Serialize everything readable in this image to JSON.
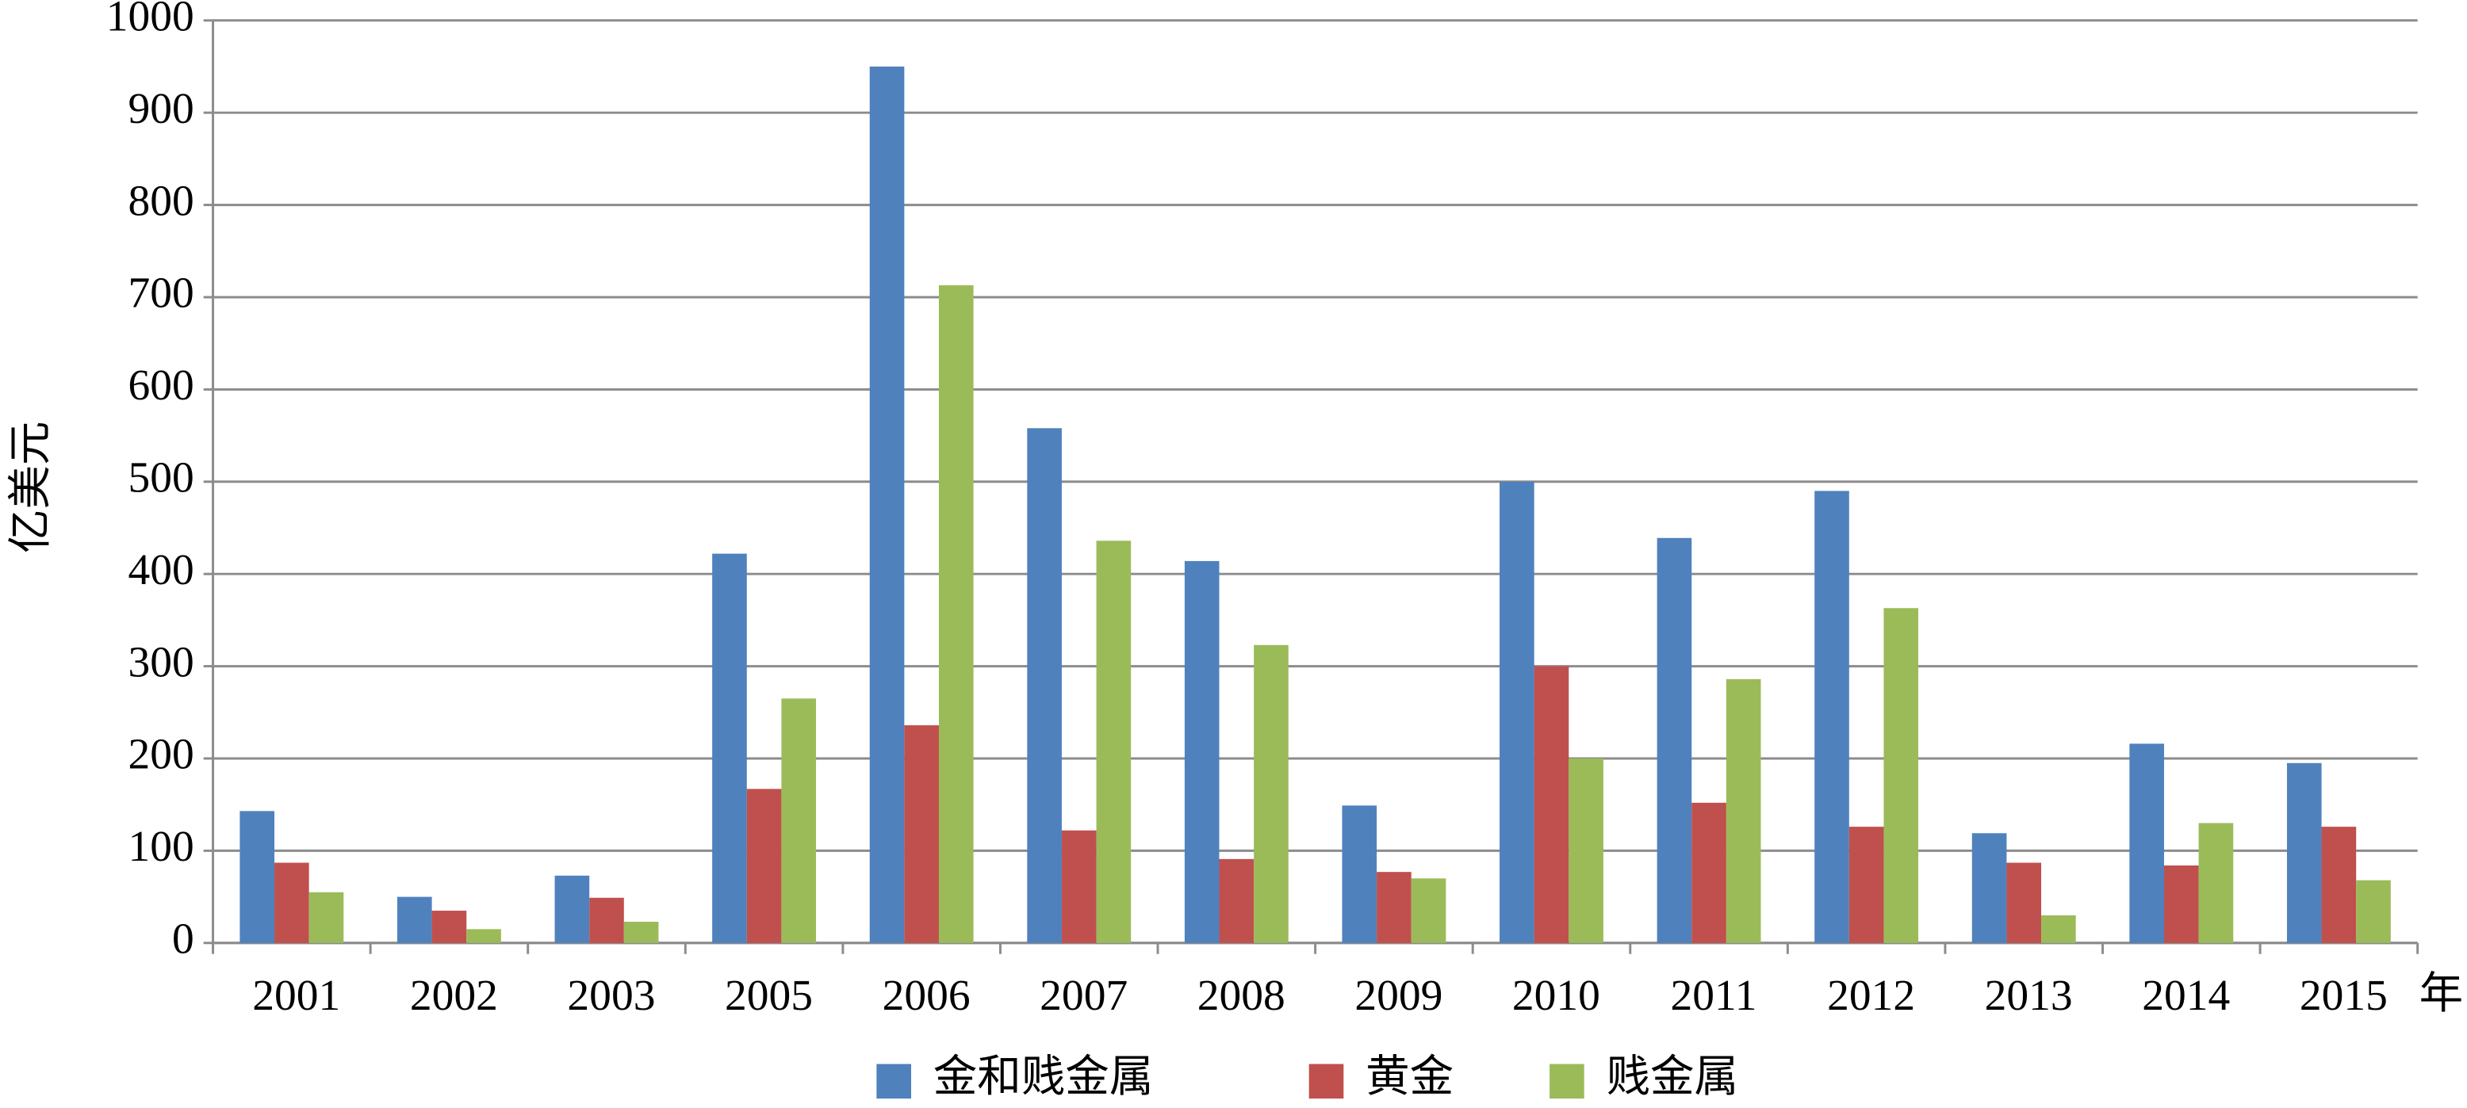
{
  "chart_data": {
    "type": "bar",
    "y_label": "亿美元",
    "x_label": "年",
    "categories": [
      "2001",
      "2002",
      "2003",
      "2005",
      "2006",
      "2007",
      "2008",
      "2009",
      "2010",
      "2011",
      "2012",
      "2013",
      "2014",
      "2015"
    ],
    "series": [
      {
        "name": "金和贱金属",
        "color": "#4f81bd",
        "values": [
          143,
          50,
          73,
          422,
          950,
          558,
          414,
          149,
          500,
          439,
          490,
          119,
          216,
          195
        ]
      },
      {
        "name": "黄金",
        "color": "#c0504d",
        "values": [
          87,
          35,
          49,
          167,
          236,
          122,
          91,
          77,
          300,
          152,
          126,
          87,
          84,
          126
        ]
      },
      {
        "name": "贱金属",
        "color": "#9bbb59",
        "values": [
          55,
          15,
          23,
          265,
          713,
          436,
          323,
          70,
          200,
          286,
          363,
          30,
          130,
          68
        ]
      }
    ],
    "ylim": [
      0,
      1000
    ],
    "yticks": [
      0,
      100,
      200,
      300,
      400,
      500,
      600,
      700,
      800,
      900,
      1000
    ],
    "grid": true,
    "legend": "bottom"
  }
}
